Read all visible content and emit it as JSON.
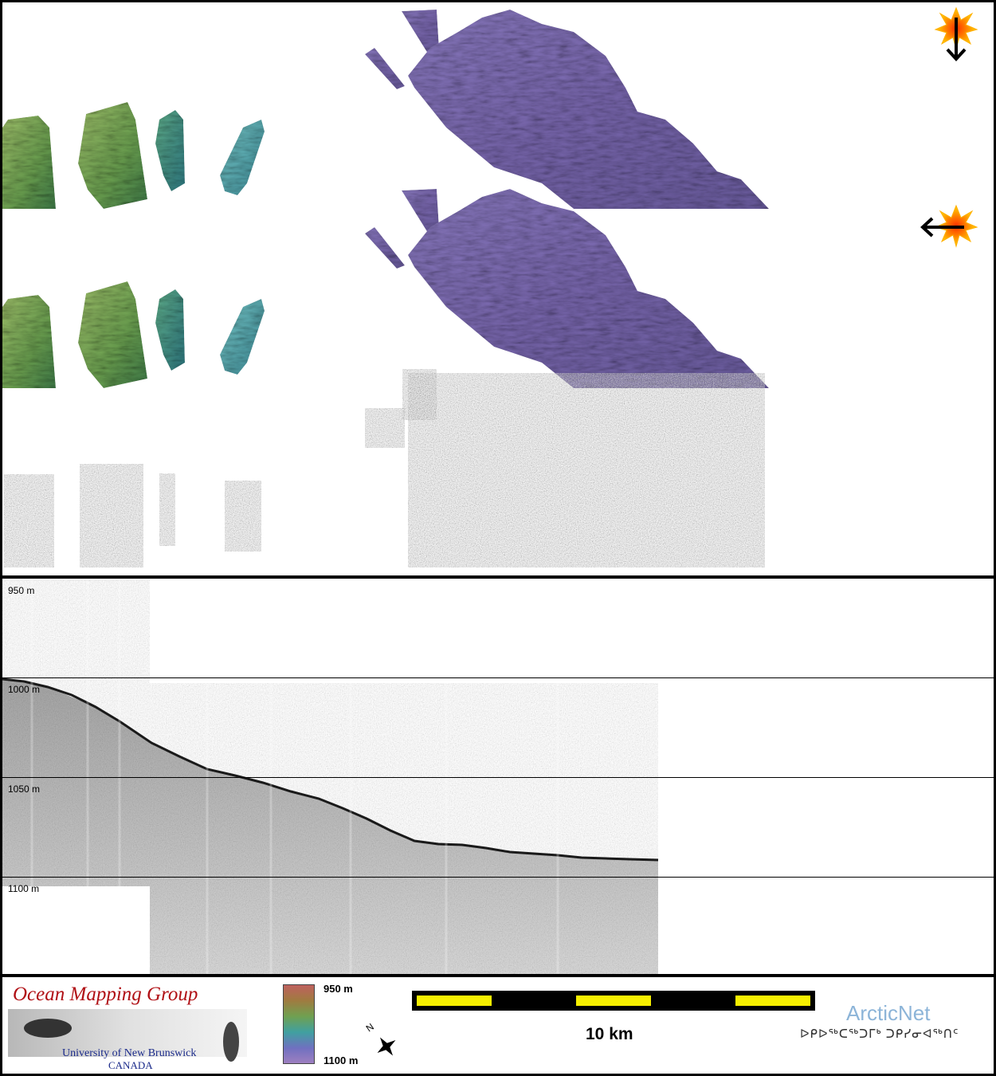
{
  "profile": {
    "depth_labels": [
      "950 m",
      "1000 m",
      "1050 m",
      "1100 m"
    ]
  },
  "legend": {
    "org_title": "Ocean Mapping Group",
    "org_university": "University of New Brunswick",
    "org_country": "CANADA",
    "colorbar_top": "950 m",
    "colorbar_bottom": "1100 m",
    "north_label": "N",
    "scale_label": "10 km",
    "partner_name": "ArcticNet",
    "partner_syllabics": "ᐅᑭᐅᖅᑕᖅᑐᒥᒃ ᑐᑭᓯᓂᐊᖅᑎᑦ"
  },
  "colors": {
    "scale_yellow": "#f6ef00",
    "logo_red": "#b01015",
    "logo_blue": "#1a2a8a",
    "arcticnet_blue": "#8cb4d8",
    "sun_orange": "#ff9a00"
  },
  "icons": {
    "sun_top": "sun-icon",
    "sun_mid": "sun-icon",
    "arrow_down": "arrow-down-icon",
    "arrow_left": "arrow-left-icon",
    "north_arrow": "north-arrow-icon"
  }
}
